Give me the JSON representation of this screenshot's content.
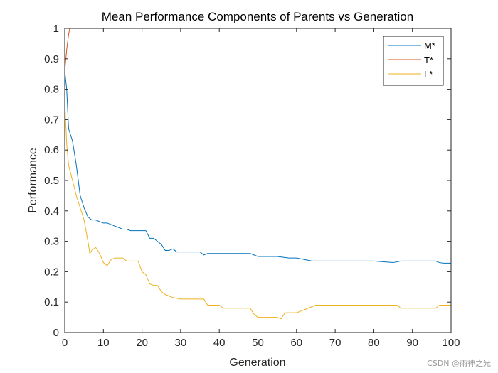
{
  "chart_data": {
    "type": "line",
    "title": "Mean Performance Components of Parents vs Generation",
    "xlabel": "Generation",
    "ylabel": "Performance",
    "xlim": [
      0,
      100
    ],
    "ylim": [
      0,
      1
    ],
    "xticks": [
      "0",
      "10",
      "20",
      "30",
      "40",
      "50",
      "60",
      "70",
      "80",
      "90",
      "100"
    ],
    "yticks": [
      "0",
      "0.1",
      "0.2",
      "0.3",
      "0.4",
      "0.5",
      "0.6",
      "0.7",
      "0.8",
      "0.9",
      "1"
    ],
    "grid": false,
    "legend_position": "top-right",
    "series": [
      {
        "name": "M*",
        "color": "#0072BD",
        "points": [
          [
            0,
            0.86
          ],
          [
            0.5,
            0.8
          ],
          [
            1,
            0.67
          ],
          [
            2,
            0.63
          ],
          [
            3,
            0.55
          ],
          [
            3.5,
            0.5
          ],
          [
            4,
            0.45
          ],
          [
            5,
            0.41
          ],
          [
            6,
            0.38
          ],
          [
            7,
            0.37
          ],
          [
            8,
            0.37
          ],
          [
            9,
            0.365
          ],
          [
            10,
            0.36
          ],
          [
            11,
            0.36
          ],
          [
            12,
            0.355
          ],
          [
            13,
            0.35
          ],
          [
            14,
            0.345
          ],
          [
            15,
            0.34
          ],
          [
            16,
            0.34
          ],
          [
            17,
            0.335
          ],
          [
            18,
            0.335
          ],
          [
            19,
            0.335
          ],
          [
            20,
            0.335
          ],
          [
            21,
            0.335
          ],
          [
            22,
            0.31
          ],
          [
            23,
            0.31
          ],
          [
            24,
            0.3
          ],
          [
            25,
            0.29
          ],
          [
            26,
            0.27
          ],
          [
            27,
            0.27
          ],
          [
            28,
            0.275
          ],
          [
            29,
            0.265
          ],
          [
            30,
            0.265
          ],
          [
            35,
            0.265
          ],
          [
            36,
            0.255
          ],
          [
            37,
            0.26
          ],
          [
            40,
            0.26
          ],
          [
            45,
            0.26
          ],
          [
            48,
            0.26
          ],
          [
            49,
            0.255
          ],
          [
            50,
            0.25
          ],
          [
            55,
            0.25
          ],
          [
            58,
            0.245
          ],
          [
            60,
            0.245
          ],
          [
            62,
            0.24
          ],
          [
            64,
            0.235
          ],
          [
            70,
            0.235
          ],
          [
            80,
            0.235
          ],
          [
            85,
            0.23
          ],
          [
            87,
            0.235
          ],
          [
            90,
            0.235
          ],
          [
            96,
            0.235
          ],
          [
            97,
            0.23
          ],
          [
            98,
            0.228
          ],
          [
            100,
            0.228
          ]
        ]
      },
      {
        "name": "T*",
        "color": "#D95319",
        "points": [
          [
            0,
            0.86
          ],
          [
            0.5,
            0.93
          ],
          [
            1,
            0.98
          ],
          [
            1.3,
            1
          ],
          [
            100,
            1
          ]
        ]
      },
      {
        "name": "L*",
        "color": "#EDB120",
        "points": [
          [
            0,
            0.76
          ],
          [
            0.5,
            0.62
          ],
          [
            1,
            0.55
          ],
          [
            2,
            0.5
          ],
          [
            3,
            0.45
          ],
          [
            4,
            0.41
          ],
          [
            5,
            0.37
          ],
          [
            6,
            0.3
          ],
          [
            6.5,
            0.26
          ],
          [
            7,
            0.27
          ],
          [
            8,
            0.28
          ],
          [
            9,
            0.26
          ],
          [
            10,
            0.23
          ],
          [
            11,
            0.22
          ],
          [
            12,
            0.24
          ],
          [
            13,
            0.245
          ],
          [
            14,
            0.245
          ],
          [
            15,
            0.245
          ],
          [
            16,
            0.235
          ],
          [
            17,
            0.235
          ],
          [
            18,
            0.235
          ],
          [
            19,
            0.235
          ],
          [
            20,
            0.2
          ],
          [
            21,
            0.19
          ],
          [
            22,
            0.16
          ],
          [
            23,
            0.155
          ],
          [
            24,
            0.155
          ],
          [
            25,
            0.135
          ],
          [
            26,
            0.125
          ],
          [
            27,
            0.12
          ],
          [
            28,
            0.115
          ],
          [
            30,
            0.11
          ],
          [
            36,
            0.11
          ],
          [
            37,
            0.09
          ],
          [
            40,
            0.09
          ],
          [
            41,
            0.08
          ],
          [
            48,
            0.08
          ],
          [
            49,
            0.06
          ],
          [
            50,
            0.05
          ],
          [
            55,
            0.05
          ],
          [
            56,
            0.045
          ],
          [
            57,
            0.065
          ],
          [
            60,
            0.065
          ],
          [
            62,
            0.075
          ],
          [
            64,
            0.085
          ],
          [
            65,
            0.09
          ],
          [
            70,
            0.09
          ],
          [
            80,
            0.09
          ],
          [
            85,
            0.09
          ],
          [
            86,
            0.09
          ],
          [
            87,
            0.08
          ],
          [
            90,
            0.08
          ],
          [
            96,
            0.08
          ],
          [
            97,
            0.09
          ],
          [
            100,
            0.09
          ]
        ]
      }
    ]
  },
  "watermark": "CSDN @雨神之光"
}
